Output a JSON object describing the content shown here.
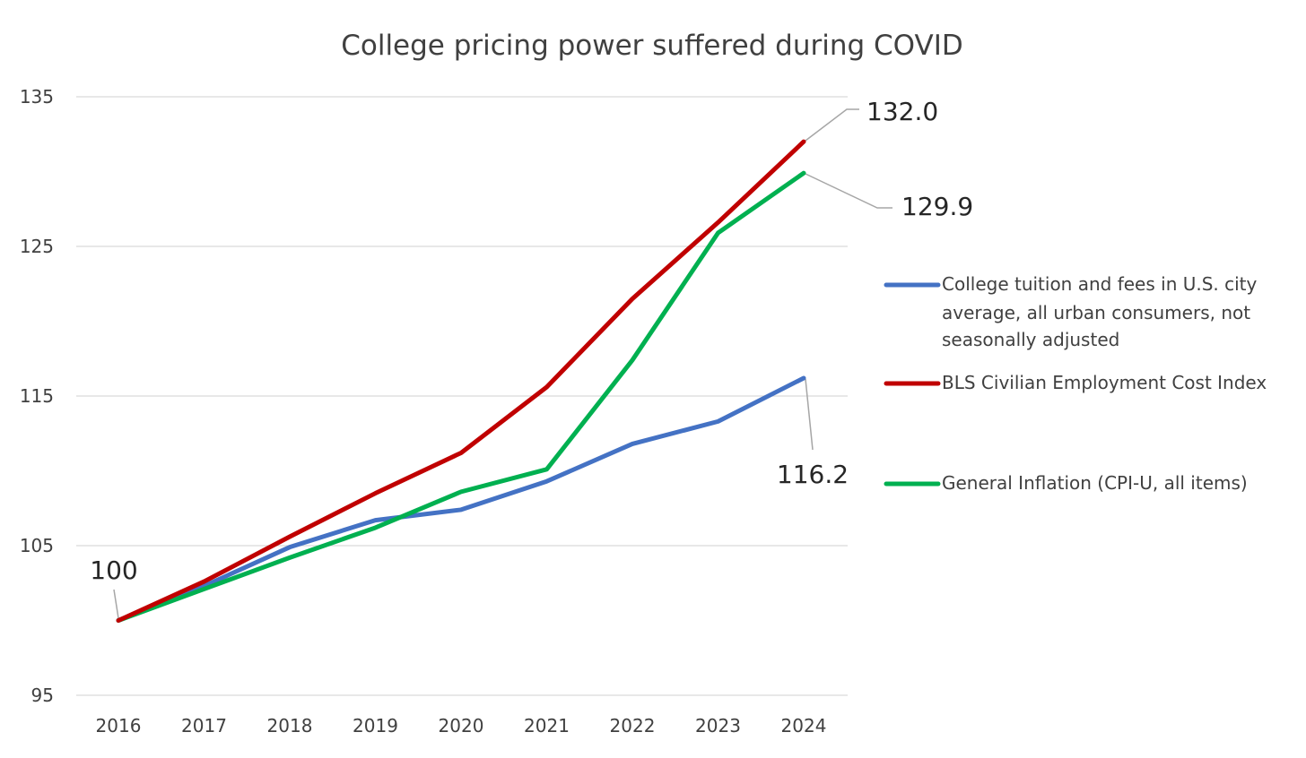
{
  "chart_data": {
    "type": "line",
    "title": "College pricing power suffered during COVID",
    "x": [
      "2016",
      "2017",
      "2018",
      "2019",
      "2020",
      "2021",
      "2022",
      "2023",
      "2024"
    ],
    "ylim": [
      95,
      135
    ],
    "yticks": [
      "95",
      "105",
      "115",
      "125",
      "135"
    ],
    "grid": true,
    "legend_position": "right",
    "series": [
      {
        "name": "College tuition and fees in U.S. city average, all urban consumers, not seasonally adjusted",
        "legend_lines": [
          "College tuition and fees in U.S. city",
          "average, all urban consumers, not",
          "seasonally adjusted"
        ],
        "color": "#4472c4",
        "values": [
          100,
          102.3,
          104.9,
          106.7,
          107.4,
          109.3,
          111.8,
          113.3,
          116.2
        ]
      },
      {
        "name": "BLS Civilian Employment Cost Index",
        "legend_lines": [
          "BLS Civilian Employment Cost Index"
        ],
        "color": "#c00000",
        "values": [
          100,
          102.6,
          105.6,
          108.5,
          111.2,
          115.6,
          121.5,
          126.6,
          132.0
        ]
      },
      {
        "name": "General Inflation (CPI-U, all items)",
        "legend_lines": [
          "General Inflation (CPI-U, all items)"
        ],
        "color": "#00b050",
        "values": [
          100,
          102.1,
          104.2,
          106.2,
          108.6,
          110.1,
          117.4,
          125.9,
          129.9
        ]
      }
    ],
    "annotations": [
      {
        "text": "100",
        "series": 2,
        "index": 0
      },
      {
        "text": "132.0",
        "series": 1,
        "index": 8
      },
      {
        "text": "129.9",
        "series": 2,
        "index": 8
      },
      {
        "text": "116.2",
        "series": 0,
        "index": 8
      }
    ]
  }
}
